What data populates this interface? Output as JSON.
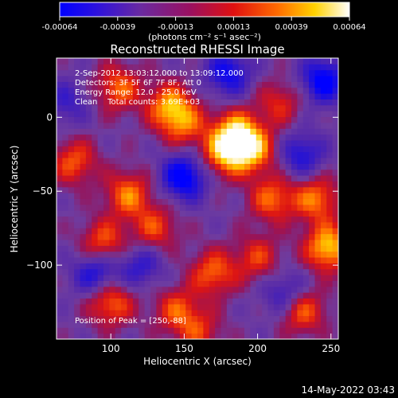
{
  "colorbar": {
    "ticks": [
      "-0.00064",
      "-0.00039",
      "-0.00013",
      "0.00013",
      "0.00039",
      "0.00064"
    ],
    "units": "(photons cm⁻² s⁻¹ asec⁻²)",
    "range": [
      -0.00064,
      0.00064
    ]
  },
  "chart_data": {
    "type": "heatmap",
    "title": "Reconstructed RHESSI Image",
    "xlabel": "Heliocentric X (arcsec)",
    "ylabel": "Heliocentric Y (arcsec)",
    "xlim": [
      63,
      255
    ],
    "ylim": [
      -150,
      40
    ],
    "xticks": [
      100,
      150,
      200,
      250
    ],
    "yticks": [
      0,
      -50,
      -100
    ],
    "annotations": [
      "2-Sep-2012 13:03:12.000 to 13:09:12.000",
      "Detectors: 3F 5F 6F 7F 8F, Att 0",
      "Energy Range: 12.0 - 25.0 keV",
      "Clean    Total counts: 3.69E+03"
    ],
    "peak_label": "Position of Peak = [250,-88]",
    "peak": [
      250,
      -88
    ],
    "colormap": "blue-purple-red-yellow-white",
    "hotspots": [
      {
        "x": 248,
        "y": -88,
        "v": 1.0
      },
      {
        "x": 185,
        "y": -10,
        "v": 0.9
      },
      {
        "x": 197,
        "y": -22,
        "v": 0.85
      },
      {
        "x": 177,
        "y": -25,
        "v": 0.8
      },
      {
        "x": 105,
        "y": 20,
        "v": 0.7
      },
      {
        "x": 112,
        "y": -52,
        "v": 0.75
      },
      {
        "x": 95,
        "y": -85,
        "v": 0.7
      },
      {
        "x": 140,
        "y": 8,
        "v": 0.8
      },
      {
        "x": 150,
        "y": -5,
        "v": 0.6
      },
      {
        "x": 100,
        "y": -125,
        "v": 0.75
      },
      {
        "x": 170,
        "y": -105,
        "v": 0.7
      },
      {
        "x": 145,
        "y": -130,
        "v": 0.6
      },
      {
        "x": 230,
        "y": -130,
        "v": 0.8
      },
      {
        "x": 240,
        "y": -55,
        "v": 0.75
      },
      {
        "x": 210,
        "y": -55,
        "v": 0.7
      },
      {
        "x": 200,
        "y": -95,
        "v": 0.55
      },
      {
        "x": 130,
        "y": -75,
        "v": 0.6
      },
      {
        "x": 75,
        "y": -30,
        "v": 0.65
      },
      {
        "x": 215,
        "y": 10,
        "v": 0.5
      },
      {
        "x": 160,
        "y": -145,
        "v": 0.5
      }
    ],
    "coldspots": [
      {
        "x": 150,
        "y": -40,
        "v": -0.9
      },
      {
        "x": 245,
        "y": 25,
        "v": -0.85
      },
      {
        "x": 90,
        "y": -105,
        "v": -0.7
      },
      {
        "x": 220,
        "y": -120,
        "v": -0.6
      },
      {
        "x": 180,
        "y": 30,
        "v": -0.7
      },
      {
        "x": 120,
        "y": -100,
        "v": -0.5
      },
      {
        "x": 230,
        "y": -25,
        "v": -0.6
      },
      {
        "x": 70,
        "y": 10,
        "v": -0.4
      }
    ]
  },
  "footer": {
    "timestamp": "14-May-2022 03:43"
  }
}
